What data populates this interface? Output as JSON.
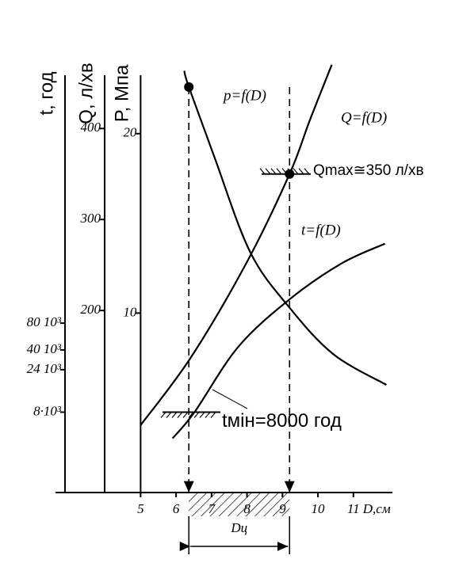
{
  "chart_data": {
    "type": "line",
    "x_label": "D,см",
    "xlim": [
      2.6,
      12.1
    ],
    "xticks": [
      5,
      6,
      7,
      8,
      9,
      10,
      11
    ],
    "axes": [
      {
        "label": "t, год",
        "log": true,
        "ylim": [
          1000,
          100000000
        ],
        "yticks": [
          {
            "value": 80000,
            "label": "80 10³"
          },
          {
            "value": 40000,
            "label": "40 10³"
          },
          {
            "value": 24000,
            "label": "24 10³"
          },
          {
            "value": 8000,
            "label": "8·10³"
          }
        ]
      },
      {
        "label": "Q, л/хв",
        "ylim": [
          0,
          489
        ],
        "yticks": [
          200,
          300,
          400
        ]
      },
      {
        "label": "P, Мпа",
        "ylim": [
          0,
          24.8
        ],
        "yticks": [
          10,
          20
        ]
      }
    ],
    "series": [
      {
        "name": "p=f(D)",
        "axis": 2,
        "color": "#000000",
        "x": [
          6.23,
          6.36,
          7.08,
          8.09,
          9.2,
          10.44,
          11.93
        ],
        "values": [
          23.5,
          22.6,
          18.7,
          13.4,
          10.3,
          7.7,
          6.0
        ]
      },
      {
        "name": "Q=f(D)",
        "axis": 1,
        "color": "#000000",
        "x": [
          5,
          6.41,
          7.98,
          9.2,
          9.77,
          10.39
        ],
        "values": [
          74,
          148,
          252,
          350,
          409,
          470
        ]
      },
      {
        "name": "t=f(D)",
        "axis": 0,
        "color": "#000000",
        "x": [
          5.9,
          6.52,
          7.75,
          9.2,
          10.66,
          11.89
        ],
        "values": [
          4060,
          8000,
          43200,
          148000,
          374000,
          625000
        ]
      }
    ],
    "d_range": [
      6.36,
      9.2
    ],
    "d_range_label": "Dц",
    "q_max_label": "Qmax≅350 л/хв",
    "q_max": 350,
    "t_min_label": "tмін=8000 год",
    "t_min": 8000
  }
}
